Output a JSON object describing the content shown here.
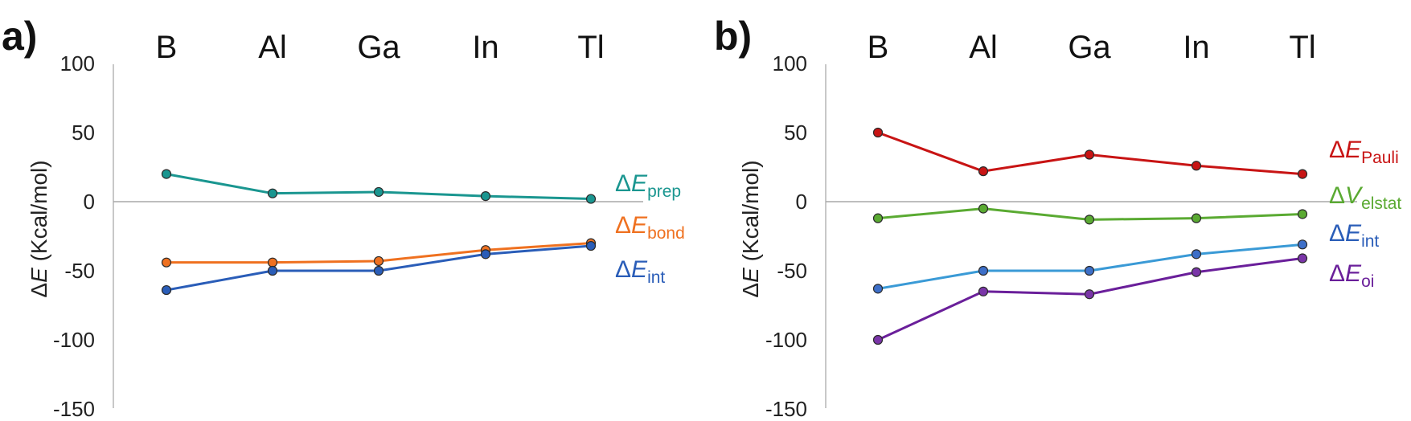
{
  "chart_data": [
    {
      "panel": "a)",
      "type": "line",
      "title": "",
      "xlabel": "",
      "ylabel": "ΔE (Kcal/mol)",
      "ylabel_symbol": "E",
      "ylabel_rest": " (Kcal/mol)",
      "categories": [
        "B",
        "Al",
        "Ga",
        "In",
        "Tl"
      ],
      "ylim": [
        -150,
        100
      ],
      "yticks": [
        100,
        50,
        0,
        -50,
        -100,
        -150
      ],
      "grid": false,
      "legend_placement": "right, inline labels",
      "series": [
        {
          "name": "ΔE_prep",
          "symbol": "E",
          "sub": "prep",
          "color": "#1a9690",
          "values": [
            20,
            6,
            7,
            4,
            2
          ]
        },
        {
          "name": "ΔE_bond",
          "symbol": "E",
          "sub": "bond",
          "color": "#ef7120",
          "values": [
            -44,
            -44,
            -43,
            -35,
            -30
          ]
        },
        {
          "name": "ΔE_int",
          "symbol": "E",
          "sub": "int",
          "color": "#2a5db8",
          "values": [
            -64,
            -50,
            -50,
            -38,
            -32
          ]
        }
      ]
    },
    {
      "panel": "b)",
      "type": "line",
      "title": "",
      "xlabel": "",
      "ylabel": "ΔE (Kcal/mol)",
      "ylabel_symbol": "E",
      "ylabel_rest": " (Kcal/mol)",
      "categories": [
        "B",
        "Al",
        "Ga",
        "In",
        "Tl"
      ],
      "ylim": [
        -150,
        100
      ],
      "yticks": [
        100,
        50,
        0,
        -50,
        -100,
        -150
      ],
      "grid": false,
      "legend_placement": "right, inline labels",
      "series": [
        {
          "name": "ΔE_Pauli",
          "symbol": "E",
          "sub": "Pauli",
          "color": "#c81414",
          "values": [
            50,
            22,
            34,
            26,
            20
          ]
        },
        {
          "name": "ΔV_elstat",
          "symbol": "V",
          "sub": "elstat",
          "color": "#5aaa32",
          "values": [
            -12,
            -5,
            -13,
            -12,
            -9
          ]
        },
        {
          "name": "ΔE_int",
          "symbol": "E",
          "sub": "int",
          "color": "#3a9ad6",
          "marker": "#3d6fc8",
          "label_color": "#2a5db8",
          "values": [
            -63,
            -50,
            -50,
            -38,
            -31
          ]
        },
        {
          "name": "ΔE_oi",
          "symbol": "E",
          "sub": "oi",
          "color": "#6a1f9a",
          "marker": "#7a35a8",
          "values": [
            -100,
            -65,
            -67,
            -51,
            -41
          ]
        }
      ]
    }
  ]
}
